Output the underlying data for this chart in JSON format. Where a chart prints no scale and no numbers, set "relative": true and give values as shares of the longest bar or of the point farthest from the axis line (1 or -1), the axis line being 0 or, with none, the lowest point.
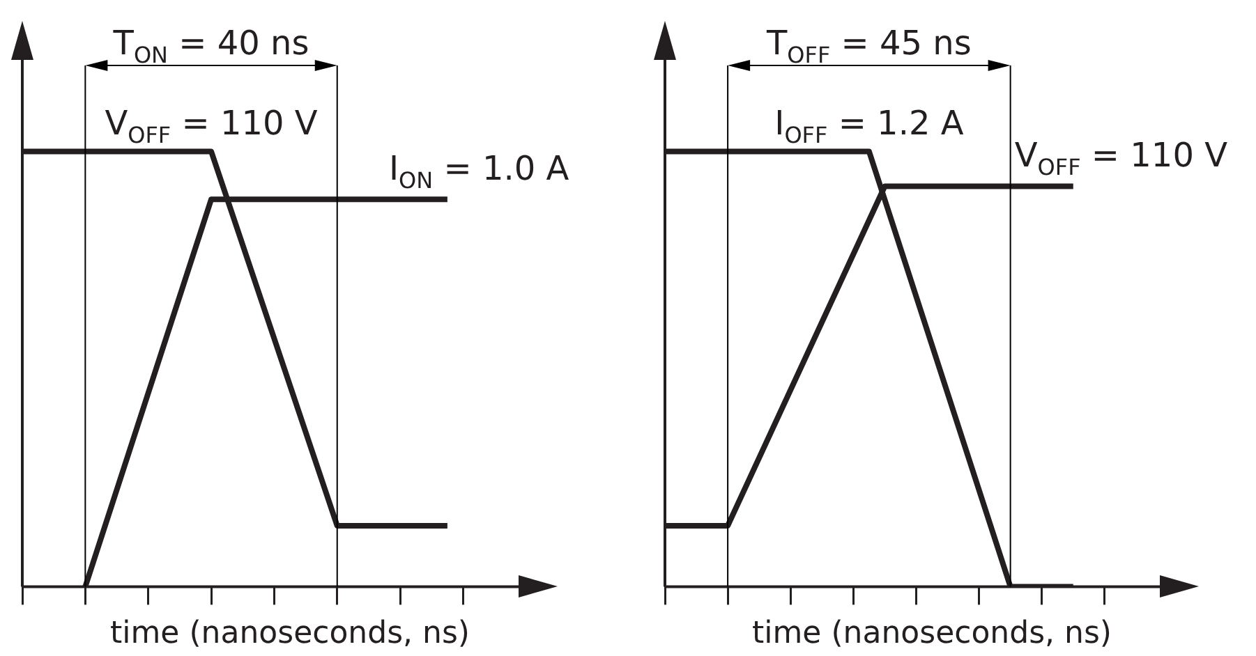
{
  "chart_data": [
    {
      "type": "line",
      "relative": true,
      "xlabel": "time (nanoseconds, ns)",
      "categories": [
        null,
        null,
        null,
        null,
        null,
        null,
        null,
        null,
        null,
        null,
        null,
        null,
        null,
        null,
        null,
        null,
        null,
        null,
        null,
        null,
        null,
        null,
        null,
        null,
        null,
        null,
        null,
        null,
        null,
        null,
        null,
        null,
        null,
        null,
        null
      ],
      "series": [
        {
          "name": "V$_{OFF}$ = 110 V",
          "color": "#231f20",
          "values": [
            1,
            null,
            null,
            null,
            null,
            null,
            null,
            null,
            null,
            null,
            null,
            null,
            1,
            null,
            null,
            null,
            null,
            null,
            null,
            null,
            0.14,
            null,
            null,
            null,
            null,
            null,
            null,
            0.14,
            null,
            null,
            null,
            null,
            null,
            null,
            null
          ]
        },
        {
          "name": "I$_{ON}$ = 1.0 A",
          "color": "#231f20",
          "values": [
            null,
            null,
            null,
            null,
            0,
            null,
            null,
            null,
            null,
            null,
            null,
            null,
            0.89,
            null,
            null,
            null,
            null,
            null,
            null,
            null,
            null,
            null,
            null,
            null,
            null,
            null,
            null,
            0.89,
            null,
            null,
            null,
            null,
            null,
            null,
            null
          ]
        }
      ],
      "annotations": [
        "T$_{ON}$ = 40 ns"
      ],
      "grid": false,
      "legend": false,
      "marker": "none",
      "line_style": "solid"
    },
    {
      "type": "line",
      "relative": true,
      "xlabel": "time (nanoseconds, ns)",
      "categories": [
        null,
        null,
        null,
        null,
        null,
        null,
        null,
        null,
        null,
        null,
        null,
        null,
        null,
        null,
        null,
        null,
        null,
        null,
        null,
        null,
        null,
        null,
        null,
        null,
        null,
        null,
        null,
        null,
        null,
        null,
        null,
        null,
        null,
        null,
        null
      ],
      "series": [
        {
          "name": "I$_{OFF}$ = 1.2 A",
          "color": "#231f20",
          "values": [
            1,
            null,
            null,
            null,
            null,
            null,
            null,
            null,
            null,
            null,
            null,
            null,
            null,
            1,
            null,
            null,
            null,
            null,
            null,
            null,
            null,
            null,
            0,
            null,
            null,
            null,
            0,
            null,
            null,
            null,
            null,
            null,
            null,
            null,
            null
          ]
        },
        {
          "name": "V$_{OFF}$ = 110 V",
          "color": "#231f20",
          "values": [
            0.14,
            null,
            null,
            null,
            0.14,
            null,
            null,
            null,
            null,
            null,
            null,
            null,
            null,
            null,
            0.92,
            null,
            null,
            null,
            null,
            null,
            null,
            null,
            null,
            null,
            null,
            null,
            0.92,
            null,
            null,
            null,
            null,
            null,
            null,
            null,
            null
          ]
        }
      ],
      "annotations": [
        "T$_{OFF}$ = 45 ns"
      ],
      "grid": false,
      "legend": false,
      "marker": "none",
      "line_style": "solid"
    }
  ]
}
